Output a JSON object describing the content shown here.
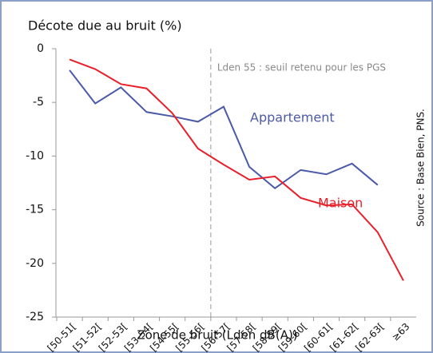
{
  "chart_data": {
    "type": "line",
    "title": "Décote due au bruit (%)",
    "x_label": "Zone de bruit (Lden dB(A))",
    "source": "Source : Base Bien, PNS.",
    "categories": [
      "[50-51[",
      "[51-52[",
      "[52-53[",
      "[53-54[",
      "[54-55[",
      "[55-56[",
      "[56-57[",
      "[57-58[",
      "[58-59[",
      "[59-60[",
      "[60-61[",
      "[61-62[",
      "[62-63[",
      "≥63"
    ],
    "series": [
      {
        "name": "Appartement",
        "color": "#4a5aa8",
        "values": [
          -2,
          -5.1,
          -3.6,
          -5.9,
          -6.3,
          -6.8,
          -5.4,
          -11,
          -13,
          -11.3,
          -11.7,
          -10.7,
          -12.7,
          null
        ]
      },
      {
        "name": "Maison",
        "color": "#e8202a",
        "values": [
          -1,
          -1.9,
          -3.3,
          -3.7,
          -6,
          -9.3,
          -10.8,
          -12.2,
          -11.9,
          -13.9,
          -14.6,
          -14.5,
          -17.1,
          -21.6
        ]
      }
    ],
    "annotations": [
      {
        "text": "Lden 55 : seuil retenu pour les PGS",
        "x": "[55-56["
      }
    ],
    "ylim": [
      -25,
      0
    ],
    "yticks": [
      0,
      -5,
      -10,
      -15,
      -20,
      -25
    ],
    "grid": false
  }
}
